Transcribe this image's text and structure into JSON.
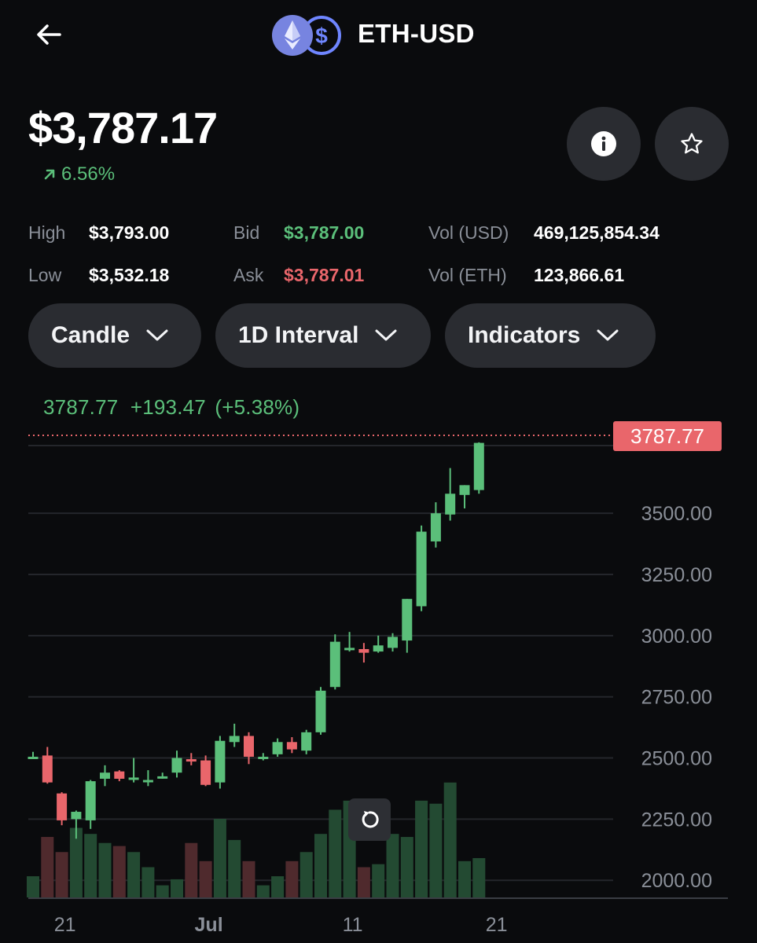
{
  "header": {
    "pair": "ETH-USD",
    "back_icon": "arrow-left-icon",
    "base_icon": "ethereum-icon",
    "quote_icon": "usdc-dollar-icon"
  },
  "price": {
    "value": "$3,787.17",
    "change": "6.56%",
    "change_icon": "arrow-up-right-icon"
  },
  "actions": {
    "info_icon": "info-icon",
    "favorite_icon": "star-icon"
  },
  "stats": {
    "high_label": "High",
    "high_value": "$3,793.00",
    "low_label": "Low",
    "low_value": "$3,532.18",
    "bid_label": "Bid",
    "bid_value": "$3,787.00",
    "ask_label": "Ask",
    "ask_value": "$3,787.01",
    "vol_usd_label": "Vol (USD)",
    "vol_usd_value": "469,125,854.34",
    "vol_eth_label": "Vol (ETH)",
    "vol_eth_value": "123,866.61"
  },
  "controls": {
    "chart_type": "Candle",
    "interval": "1D Interval",
    "indicators": "Indicators"
  },
  "colors": {
    "up": "#5bbf7a",
    "down": "#e9666b",
    "background": "#0a0b0d",
    "pill": "#2a2c31"
  },
  "chart_readout": {
    "last": "3787.77",
    "change": "+193.47",
    "percent": "(+5.38%)"
  },
  "chart_data": {
    "type": "candlestick",
    "interval": "1D",
    "last_price_label": "3787.77",
    "y_ticks": [
      "3500.00",
      "3250.00",
      "3000.00",
      "2750.00",
      "2500.00",
      "2250.00",
      "2000.00"
    ],
    "y_tick_values": [
      3500,
      3250,
      3000,
      2750,
      2500,
      2250,
      2000
    ],
    "x_ticks": [
      "21",
      "Jul",
      "11",
      "21"
    ],
    "x_tick_index": [
      2,
      12,
      22,
      32
    ],
    "ylim": [
      1930,
      3780
    ],
    "vol_max": 2.3,
    "grid": true,
    "candles": [
      {
        "o": 2505,
        "h": 2525,
        "l": 2500,
        "c": 2505,
        "v": 0.35
      },
      {
        "o": 2510,
        "h": 2545,
        "l": 2395,
        "c": 2400,
        "v": 1.0
      },
      {
        "o": 2355,
        "h": 2360,
        "l": 2225,
        "c": 2245,
        "v": 0.75
      },
      {
        "o": 2250,
        "h": 2285,
        "l": 2170,
        "c": 2280,
        "v": 1.15
      },
      {
        "o": 2245,
        "h": 2410,
        "l": 2210,
        "c": 2405,
        "v": 1.05
      },
      {
        "o": 2415,
        "h": 2470,
        "l": 2385,
        "c": 2440,
        "v": 0.9
      },
      {
        "o": 2445,
        "h": 2450,
        "l": 2405,
        "c": 2415,
        "v": 0.85
      },
      {
        "o": 2420,
        "h": 2500,
        "l": 2400,
        "c": 2420,
        "v": 0.75
      },
      {
        "o": 2410,
        "h": 2450,
        "l": 2385,
        "c": 2410,
        "v": 0.5
      },
      {
        "o": 2425,
        "h": 2440,
        "l": 2415,
        "c": 2425,
        "v": 0.2
      },
      {
        "o": 2440,
        "h": 2530,
        "l": 2420,
        "c": 2500,
        "v": 0.3
      },
      {
        "o": 2495,
        "h": 2520,
        "l": 2470,
        "c": 2490,
        "v": 0.9
      },
      {
        "o": 2490,
        "h": 2510,
        "l": 2385,
        "c": 2390,
        "v": 0.6
      },
      {
        "o": 2400,
        "h": 2590,
        "l": 2375,
        "c": 2570,
        "v": 1.3
      },
      {
        "o": 2565,
        "h": 2640,
        "l": 2545,
        "c": 2590,
        "v": 0.95
      },
      {
        "o": 2590,
        "h": 2605,
        "l": 2475,
        "c": 2505,
        "v": 0.6
      },
      {
        "o": 2505,
        "h": 2520,
        "l": 2490,
        "c": 2505,
        "v": 0.2
      },
      {
        "o": 2515,
        "h": 2580,
        "l": 2505,
        "c": 2565,
        "v": 0.35
      },
      {
        "o": 2565,
        "h": 2585,
        "l": 2520,
        "c": 2535,
        "v": 0.6
      },
      {
        "o": 2530,
        "h": 2615,
        "l": 2515,
        "c": 2605,
        "v": 0.75
      },
      {
        "o": 2605,
        "h": 2790,
        "l": 2595,
        "c": 2775,
        "v": 1.05
      },
      {
        "o": 2790,
        "h": 3005,
        "l": 2780,
        "c": 2975,
        "v": 1.45
      },
      {
        "o": 2950,
        "h": 3015,
        "l": 2935,
        "c": 2950,
        "v": 1.6
      },
      {
        "o": 2945,
        "h": 2970,
        "l": 2890,
        "c": 2930,
        "v": 0.5
      },
      {
        "o": 2935,
        "h": 3000,
        "l": 2930,
        "c": 2960,
        "v": 0.55
      },
      {
        "o": 2950,
        "h": 3010,
        "l": 2935,
        "c": 2995,
        "v": 1.05
      },
      {
        "o": 2980,
        "h": 3150,
        "l": 2930,
        "c": 3150,
        "v": 1.0
      },
      {
        "o": 3120,
        "h": 3450,
        "l": 3100,
        "c": 3425,
        "v": 1.6
      },
      {
        "o": 3385,
        "h": 3545,
        "l": 3360,
        "c": 3500,
        "v": 1.55
      },
      {
        "o": 3495,
        "h": 3685,
        "l": 3470,
        "c": 3580,
        "v": 1.9
      },
      {
        "o": 3575,
        "h": 3615,
        "l": 3520,
        "c": 3615,
        "v": 0.6
      },
      {
        "o": 3595,
        "h": 3790,
        "l": 3580,
        "c": 3787.77,
        "v": 0.65
      }
    ]
  }
}
